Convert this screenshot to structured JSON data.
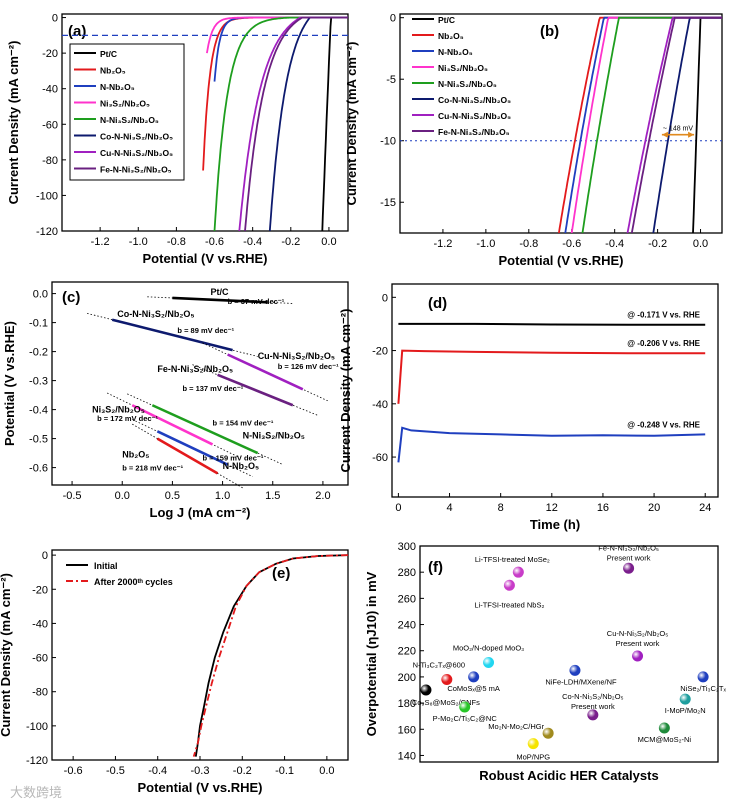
{
  "figure": {
    "watermark": "大数跨境"
  },
  "chart_data": [
    {
      "panel_label": "(a)",
      "type": "line",
      "xlabel": "Potential (V vs.RHE)",
      "ylabel": "Current Density (mA cm⁻²)",
      "xlim": [
        -1.4,
        0.1
      ],
      "ylim": [
        -120,
        2
      ],
      "xticks": [
        -1.2,
        -1.0,
        -0.8,
        -0.6,
        -0.4,
        -0.2,
        0.0
      ],
      "yticks": [
        0,
        -20,
        -40,
        -60,
        -80,
        -100,
        -120
      ],
      "xtick_labels": [
        "-1.2",
        "-1.0",
        "-0.8",
        "-0.6",
        "-0.4",
        "-0.2",
        "0.0"
      ],
      "ytick_labels": [
        "0",
        "-20",
        "-40",
        "-60",
        "-80",
        "-100",
        "-120"
      ],
      "reference_line_y": -10,
      "legend_position": "middle-left",
      "series": [
        {
          "name": "Pt/C",
          "color": "#000000",
          "onset": 0.01,
          "steep": 1.4,
          "stop": -0.035,
          "ymin": -120
        },
        {
          "name": "Nb₂O₅",
          "color": "#e31a1c",
          "onset": -0.35,
          "steep": 0.11,
          "stop": -0.66,
          "ymin": -86
        },
        {
          "name": "N-Nb₂O₅",
          "color": "#1f3fbf",
          "onset": -0.3,
          "steep": 0.08,
          "stop": -0.6,
          "ymin": -36
        },
        {
          "name": "Ni₃S₂/Nb₂O₅",
          "color": "#ff33cc",
          "onset": -0.32,
          "steep": 0.09,
          "stop": -0.64,
          "ymin": -20
        },
        {
          "name": "N-Ni₃S₂/Nb₂O₅",
          "color": "#1e9e1e",
          "onset": -0.2,
          "steep": 0.2,
          "stop": -0.6,
          "ymin": -120
        },
        {
          "name": "Co-N-Ni₃S₂/Nb₂O₅",
          "color": "#0d1a6e",
          "onset": -0.1,
          "steep": 0.26,
          "stop": -0.31,
          "ymin": -120
        },
        {
          "name": "Cu-N-Ni₃S₂/Nb₂O₅",
          "color": "#a020c0",
          "onset": -0.15,
          "steep": 0.33,
          "stop": -0.47,
          "ymin": -120
        },
        {
          "name": "Fe-N-Ni₃S₂/Nb₂O₅",
          "color": "#6a2080",
          "onset": -0.14,
          "steep": 0.3,
          "stop": -0.44,
          "ymin": -120
        }
      ]
    },
    {
      "panel_label": "(b)",
      "type": "line",
      "xlabel": "Potential (V vs.RHE)",
      "ylabel": "Current Density (mA cm⁻²)",
      "xlim": [
        -1.4,
        0.1
      ],
      "ylim": [
        -17.5,
        0.3
      ],
      "xticks": [
        -1.2,
        -1.0,
        -0.8,
        -0.6,
        -0.4,
        -0.2,
        0.0
      ],
      "yticks": [
        0,
        -5,
        -10,
        -15
      ],
      "xtick_labels": [
        "-1.2",
        "-1.0",
        "-0.8",
        "-0.6",
        "-0.4",
        "-0.2",
        "0.0"
      ],
      "ytick_labels": [
        "0",
        "-5",
        "-10",
        "-15"
      ],
      "reference_line_y": -10,
      "annotation": "~ 148 mV",
      "legend_position": "top-left",
      "series": [
        {
          "name": "Pt/C",
          "color": "#000000",
          "onset": 0.0,
          "steep": 5.0,
          "stop": -0.035,
          "ymin": -17.5
        },
        {
          "name": "Nb₂O₅",
          "color": "#e31a1c",
          "onset": -0.47,
          "steep": 2.0,
          "stop": -0.66,
          "ymin": -17.5
        },
        {
          "name": "N-Nb₂O₅",
          "color": "#1f3fbf",
          "onset": -0.45,
          "steep": 1.8,
          "stop": -0.63,
          "ymin": -17.5
        },
        {
          "name": "Ni₃S₂/Nb₂O₅",
          "color": "#ff33cc",
          "onset": -0.43,
          "steep": 1.8,
          "stop": -0.6,
          "ymin": -17.5
        },
        {
          "name": "N-Ni₃S₂/Nb₂O₅",
          "color": "#1e9e1e",
          "onset": -0.38,
          "steep": 2.0,
          "stop": -0.55,
          "ymin": -17.5
        },
        {
          "name": "Co-N-Ni₃S₂/Nb₂O₅",
          "color": "#0d1a6e",
          "onset": -0.05,
          "steep": 2.2,
          "stop": -0.22,
          "ymin": -17.5
        },
        {
          "name": "Cu-N-Ni₃S₂/Nb₂O₅",
          "color": "#a020c0",
          "onset": -0.13,
          "steep": 2.4,
          "stop": -0.34,
          "ymin": -17.5
        },
        {
          "name": "Fe-N-Ni₃S₂/Nb₂O₅",
          "color": "#6a2080",
          "onset": -0.12,
          "steep": 2.6,
          "stop": -0.32,
          "ymin": -17.5
        }
      ]
    },
    {
      "panel_label": "(c)",
      "type": "line",
      "xlabel": "Log J (mA cm⁻²)",
      "ylabel": "Potential (V vs.RHE)",
      "xlim": [
        -0.7,
        2.25
      ],
      "ylim": [
        -0.66,
        0.04
      ],
      "xticks": [
        -0.5,
        0.0,
        0.5,
        1.0,
        1.5,
        2.0
      ],
      "yticks": [
        0.0,
        -0.1,
        -0.2,
        -0.3,
        -0.4,
        -0.5,
        -0.6
      ],
      "xtick_labels": [
        "-0.5",
        "0.0",
        "0.5",
        "1.0",
        "1.5",
        "2.0"
      ],
      "ytick_labels": [
        "0.0",
        "-0.1",
        "-0.2",
        "-0.3",
        "-0.4",
        "-0.5",
        "-0.6"
      ],
      "series": [
        {
          "name": "Pt/C",
          "color": "#000000",
          "slope_label": "b = 37 mV dec⁻¹",
          "x": [
            0.5,
            1.45
          ],
          "y": [
            -0.015,
            -0.03
          ]
        },
        {
          "name": "Co-N-Ni₃S₂/Nb₂O₅",
          "color": "#0d1a6e",
          "slope_label": "b = 89 mV dec⁻¹",
          "x": [
            -0.1,
            1.1
          ],
          "y": [
            -0.09,
            -0.195
          ]
        },
        {
          "name": "Cu-N-Ni₃S₂/Nb₂O₅",
          "color": "#a020c0",
          "slope_label": "b = 126 mV dec⁻¹",
          "x": [
            1.05,
            1.8
          ],
          "y": [
            -0.21,
            -0.33
          ]
        },
        {
          "name": "Fe-N-Ni₃S₂/Nb₂O₅",
          "color": "#6a2080",
          "slope_label": "b = 137 mV dec⁻¹",
          "x": [
            0.95,
            1.7
          ],
          "y": [
            -0.28,
            -0.385
          ]
        },
        {
          "name": "Ni₃S₂/Nb₂O₅",
          "color": "#ff33cc",
          "slope_label": "b = 172 mV dec⁻¹",
          "x": [
            0.1,
            0.9
          ],
          "y": [
            -0.385,
            -0.52
          ]
        },
        {
          "name": "N-Ni₃S₂/Nb₂O₅",
          "color": "#1e9e1e",
          "slope_label": "b = 154 mV dec⁻¹",
          "x": [
            0.3,
            1.35
          ],
          "y": [
            -0.385,
            -0.55
          ]
        },
        {
          "name": "N-Nb₂O₅",
          "color": "#1f3fbf",
          "slope_label": "b = 159 mV dec⁻¹",
          "x": [
            0.35,
            1.05
          ],
          "y": [
            -0.475,
            -0.59
          ]
        },
        {
          "name": "Nb₂O₅",
          "color": "#e31a1c",
          "slope_label": "b = 218 mV dec⁻¹",
          "x": [
            0.35,
            0.95
          ],
          "y": [
            -0.5,
            -0.62
          ]
        }
      ]
    },
    {
      "panel_label": "(d)",
      "type": "line",
      "xlabel": "Time (h)",
      "ylabel": "Current Density (mA cm⁻²)",
      "xlim": [
        -0.5,
        25
      ],
      "ylim": [
        -75,
        5
      ],
      "xticks": [
        0,
        4,
        8,
        12,
        16,
        20,
        24
      ],
      "yticks": [
        0,
        -20,
        -40,
        -60
      ],
      "xtick_labels": [
        "0",
        "4",
        "8",
        "12",
        "16",
        "20",
        "24"
      ],
      "ytick_labels": [
        "0",
        "-20",
        "-40",
        "-60"
      ],
      "series": [
        {
          "name": "@ -0.171 V vs. RHE",
          "color": "#000000",
          "x": [
            0,
            2,
            6,
            12,
            18,
            24
          ],
          "y": [
            -10,
            -10,
            -10,
            -10.2,
            -10.3,
            -10.3
          ]
        },
        {
          "name": "@ -0.206 V vs. RHE",
          "color": "#e31a1c",
          "x": [
            0,
            0.3,
            2,
            6,
            12,
            18,
            24
          ],
          "y": [
            -40,
            -20,
            -20.2,
            -20.5,
            -20.8,
            -21,
            -21
          ]
        },
        {
          "name": "@ -0.248 V vs. RHE",
          "color": "#1f3fbf",
          "x": [
            0,
            0.3,
            1,
            4,
            8,
            12,
            16,
            20,
            24
          ],
          "y": [
            -62,
            -49,
            -50,
            -51,
            -51.5,
            -52,
            -51.8,
            -52,
            -51.5
          ]
        }
      ]
    },
    {
      "panel_label": "(e)",
      "type": "line",
      "xlabel": "Potential (V vs.RHE)",
      "ylabel": "Current Density (mA cm⁻²)",
      "xlim": [
        -0.65,
        0.05
      ],
      "ylim": [
        -120,
        3
      ],
      "xticks": [
        -0.6,
        -0.5,
        -0.4,
        -0.3,
        -0.2,
        -0.1,
        0.0
      ],
      "yticks": [
        0,
        -20,
        -40,
        -60,
        -80,
        -100,
        -120
      ],
      "xtick_labels": [
        "-0.6",
        "-0.5",
        "-0.4",
        "-0.3",
        "-0.2",
        "-0.1",
        "0.0"
      ],
      "ytick_labels": [
        "0",
        "-20",
        "-40",
        "-60",
        "-80",
        "-100",
        "-120"
      ],
      "legend_position": "top-left",
      "legend_labels": [
        "Initial",
        "After 2000ᵗʰ cycles"
      ],
      "series": [
        {
          "name": "Initial",
          "color": "#000000",
          "dashed": false,
          "x": [
            0.05,
            -0.02,
            -0.08,
            -0.12,
            -0.16,
            -0.19,
            -0.22,
            -0.245,
            -0.265,
            -0.28,
            -0.29,
            -0.3,
            -0.305,
            -0.31
          ],
          "y": [
            0,
            -0.5,
            -2,
            -5,
            -10,
            -18,
            -30,
            -45,
            -60,
            -75,
            -88,
            -100,
            -110,
            -118
          ]
        },
        {
          "name": "After 2000ᵗʰ cycles",
          "color": "#e31a1c",
          "dashed": true,
          "x": [
            0.05,
            -0.02,
            -0.08,
            -0.12,
            -0.16,
            -0.19,
            -0.215,
            -0.235,
            -0.255,
            -0.272,
            -0.285,
            -0.297,
            -0.305,
            -0.315
          ],
          "y": [
            0,
            -0.5,
            -2,
            -5,
            -10,
            -18,
            -30,
            -45,
            -60,
            -75,
            -88,
            -100,
            -110,
            -118
          ]
        }
      ]
    },
    {
      "panel_label": "(f)",
      "type": "scatter",
      "xlabel": "Robust Acidic HER Catalysts",
      "ylabel": "Overpotential (ηJ10) in mV",
      "xlim": [
        0,
        10
      ],
      "ylim": [
        135,
        300
      ],
      "yticks": [
        140,
        160,
        180,
        200,
        220,
        240,
        260,
        280,
        300
      ],
      "ytick_labels": [
        "140",
        "160",
        "180",
        "200",
        "220",
        "240",
        "260",
        "280",
        "300"
      ],
      "points": [
        {
          "label": "Li-TFSI-treated MoSe₂",
          "x": 3.3,
          "y": 280,
          "color": "#c83cc8",
          "highlight": false
        },
        {
          "label": "Li-TFSI-treated NbS₂",
          "x": 3.0,
          "y": 270,
          "color": "#c83cc8",
          "highlight": false
        },
        {
          "label": "Fe-N-Ni₃S₂/Nb₂O₅",
          "sublabel": "Present work",
          "x": 7.0,
          "y": 283,
          "color": "#7a1e8c",
          "highlight": true
        },
        {
          "label": "MoO₂/N-doped MoO₃",
          "x": 2.3,
          "y": 211,
          "color": "#22d6f0",
          "highlight": false
        },
        {
          "label": "N-Ti₃C₂Tₓ@600",
          "x": 0.9,
          "y": 198,
          "color": "#e31a1c",
          "highlight": false
        },
        {
          "label": "CoMoSₓ@5 mA",
          "x": 1.8,
          "y": 200,
          "color": "#1f3fbf",
          "highlight": false
        },
        {
          "label": "Co₉S₈@MoS₂/CNFs",
          "x": 0.2,
          "y": 190,
          "color": "#000000",
          "highlight": false
        },
        {
          "label": "P-Mo₂C/Ti₃C₂@NC",
          "x": 1.5,
          "y": 177,
          "color": "#28c628",
          "highlight": false
        },
        {
          "label": "NiFe-LDH/MXene/NF",
          "x": 5.2,
          "y": 205,
          "color": "#1f3fbf",
          "highlight": false
        },
        {
          "label": "Cu-N-Ni₃S₂/Nb₂O₅",
          "sublabel": "Present work",
          "x": 7.3,
          "y": 216,
          "color": "#a020c0",
          "highlight": true
        },
        {
          "label": "NiSe₂/Ti₃C₂Tₓ",
          "x": 9.5,
          "y": 200,
          "color": "#1f3fbf",
          "highlight": false
        },
        {
          "label": "I-MoP/Mo₂N",
          "x": 8.9,
          "y": 183,
          "color": "#1e9e9e",
          "highlight": false
        },
        {
          "label": "Co-N-Ni₃S₂/Nb₂O₅",
          "sublabel": "Present work",
          "x": 5.8,
          "y": 171,
          "color": "#7a1e8c",
          "highlight": true
        },
        {
          "label": "Mo₂N-Mo₂C/HGr",
          "x": 4.3,
          "y": 157,
          "color": "#a08a1e",
          "highlight": false
        },
        {
          "label": "MoP/NPG",
          "x": 3.8,
          "y": 149,
          "color": "#f5e400",
          "highlight": false
        },
        {
          "label": "MCM@MoS₂-Ni",
          "x": 8.2,
          "y": 161,
          "color": "#1e8a3a",
          "highlight": false
        }
      ]
    }
  ]
}
